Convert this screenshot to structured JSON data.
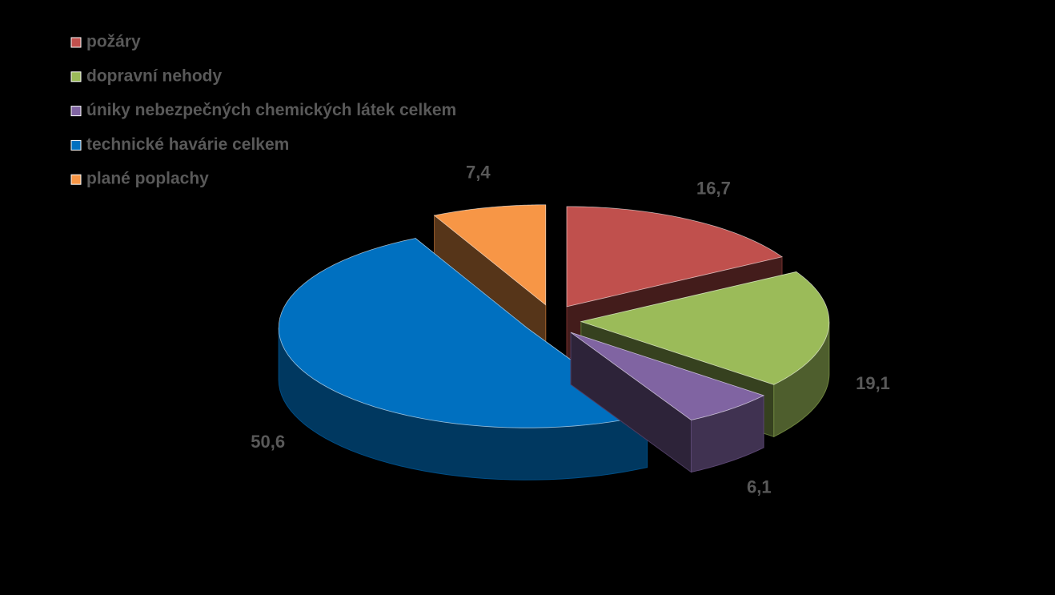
{
  "chart_data": {
    "type": "pie",
    "categories": [
      "požáry",
      "dopravní nehody",
      "úniky nebezpečných chemických látek celkem",
      "technické havárie celkem",
      "plané poplachy"
    ],
    "values": [
      16.7,
      19.1,
      6.1,
      50.6,
      7.4
    ],
    "value_labels": [
      "16,7",
      "19,1",
      "6,1",
      "50,6",
      "7,4"
    ],
    "colors": [
      "#c0504d",
      "#9bbb59",
      "#8064a2",
      "#0070c0",
      "#f79646"
    ],
    "legend": "top-left"
  }
}
